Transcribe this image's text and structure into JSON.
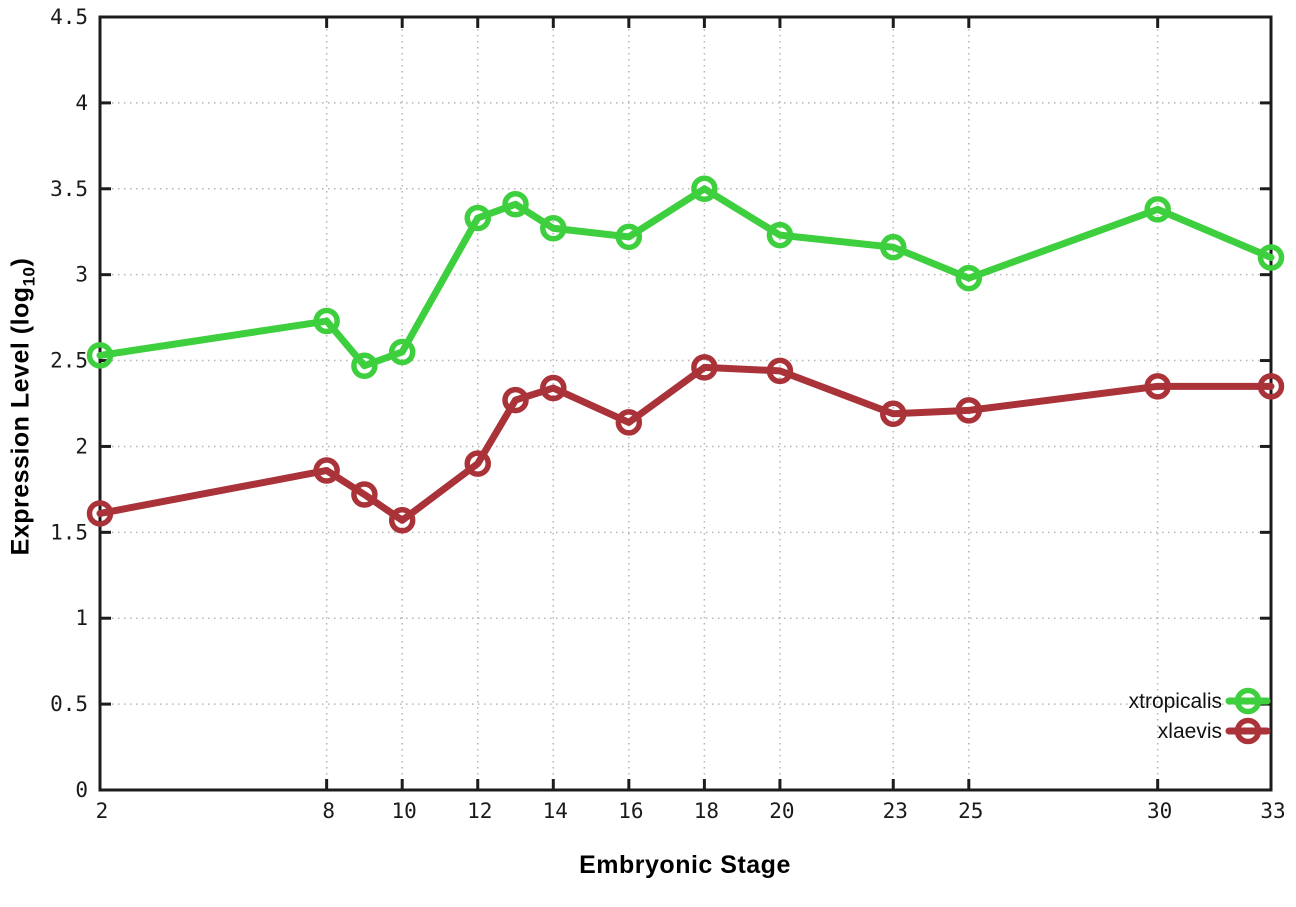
{
  "chart_data": {
    "type": "line",
    "title": "",
    "xlabel": "Embryonic Stage",
    "ylabel": {
      "pre": "Expression Level (log",
      "sub": "10",
      "post": ")"
    },
    "x": [
      2,
      8,
      9,
      10,
      12,
      13,
      14,
      16,
      18,
      20,
      23,
      25,
      30,
      33
    ],
    "xlim": [
      2,
      33
    ],
    "ylim": [
      0,
      4.5
    ],
    "xticks": [
      2,
      8,
      10,
      12,
      14,
      16,
      18,
      20,
      23,
      25,
      30,
      33
    ],
    "yticks": [
      0,
      0.5,
      1,
      1.5,
      2,
      2.5,
      3,
      3.5,
      4,
      4.5
    ],
    "ytick_labels": [
      "0",
      "0.5",
      "1",
      "1.5",
      "2",
      "2.5",
      "3",
      "3.5",
      "4",
      "4.5"
    ],
    "grid": true,
    "legend_position": "bottom-right",
    "series": [
      {
        "name": "xtropicalis",
        "color": "#3dcf3d",
        "values": [
          2.53,
          2.73,
          2.47,
          2.55,
          3.33,
          3.41,
          3.27,
          3.22,
          3.5,
          3.23,
          3.16,
          2.98,
          3.38,
          3.1
        ]
      },
      {
        "name": "xlaevis",
        "color": "#aa3239",
        "values": [
          1.61,
          1.86,
          1.72,
          1.57,
          1.9,
          2.27,
          2.34,
          2.14,
          2.46,
          2.44,
          2.19,
          2.21,
          2.35,
          2.35
        ]
      }
    ]
  },
  "style_colors": {
    "background": "#ffffff",
    "axis": "#1c1c1c",
    "grid": "#b5b5b5",
    "tick_text": "#1a1a1a"
  }
}
